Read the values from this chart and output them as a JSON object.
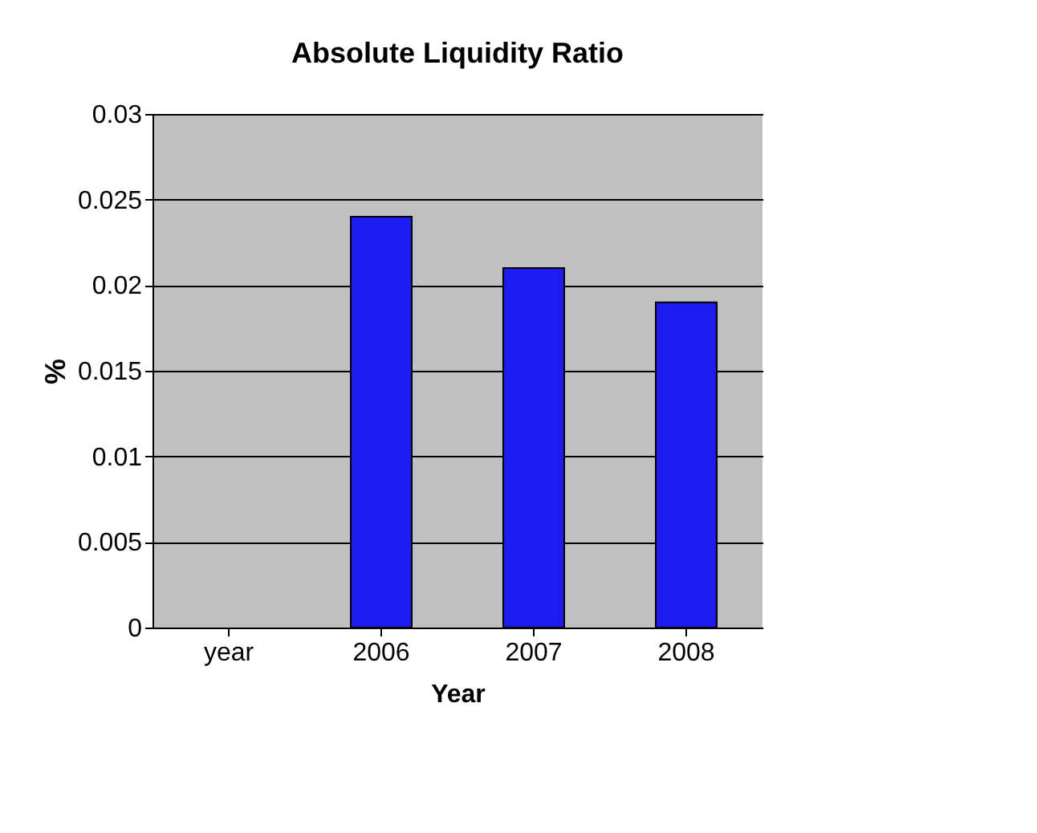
{
  "chart_data": {
    "type": "bar",
    "title": "Absolute Liquidity Ratio",
    "xlabel": "Year",
    "ylabel": "%",
    "categories": [
      "year",
      "2006",
      "2007",
      "2008"
    ],
    "series": [
      {
        "color": "#1c1cf0",
        "values": [
          null,
          0.024,
          0.021,
          0.019
        ]
      }
    ],
    "ylim": [
      0,
      0.03
    ],
    "yticks": [
      0,
      0.005,
      0.01,
      0.015,
      0.02,
      0.025,
      0.03
    ],
    "grid": "y"
  }
}
